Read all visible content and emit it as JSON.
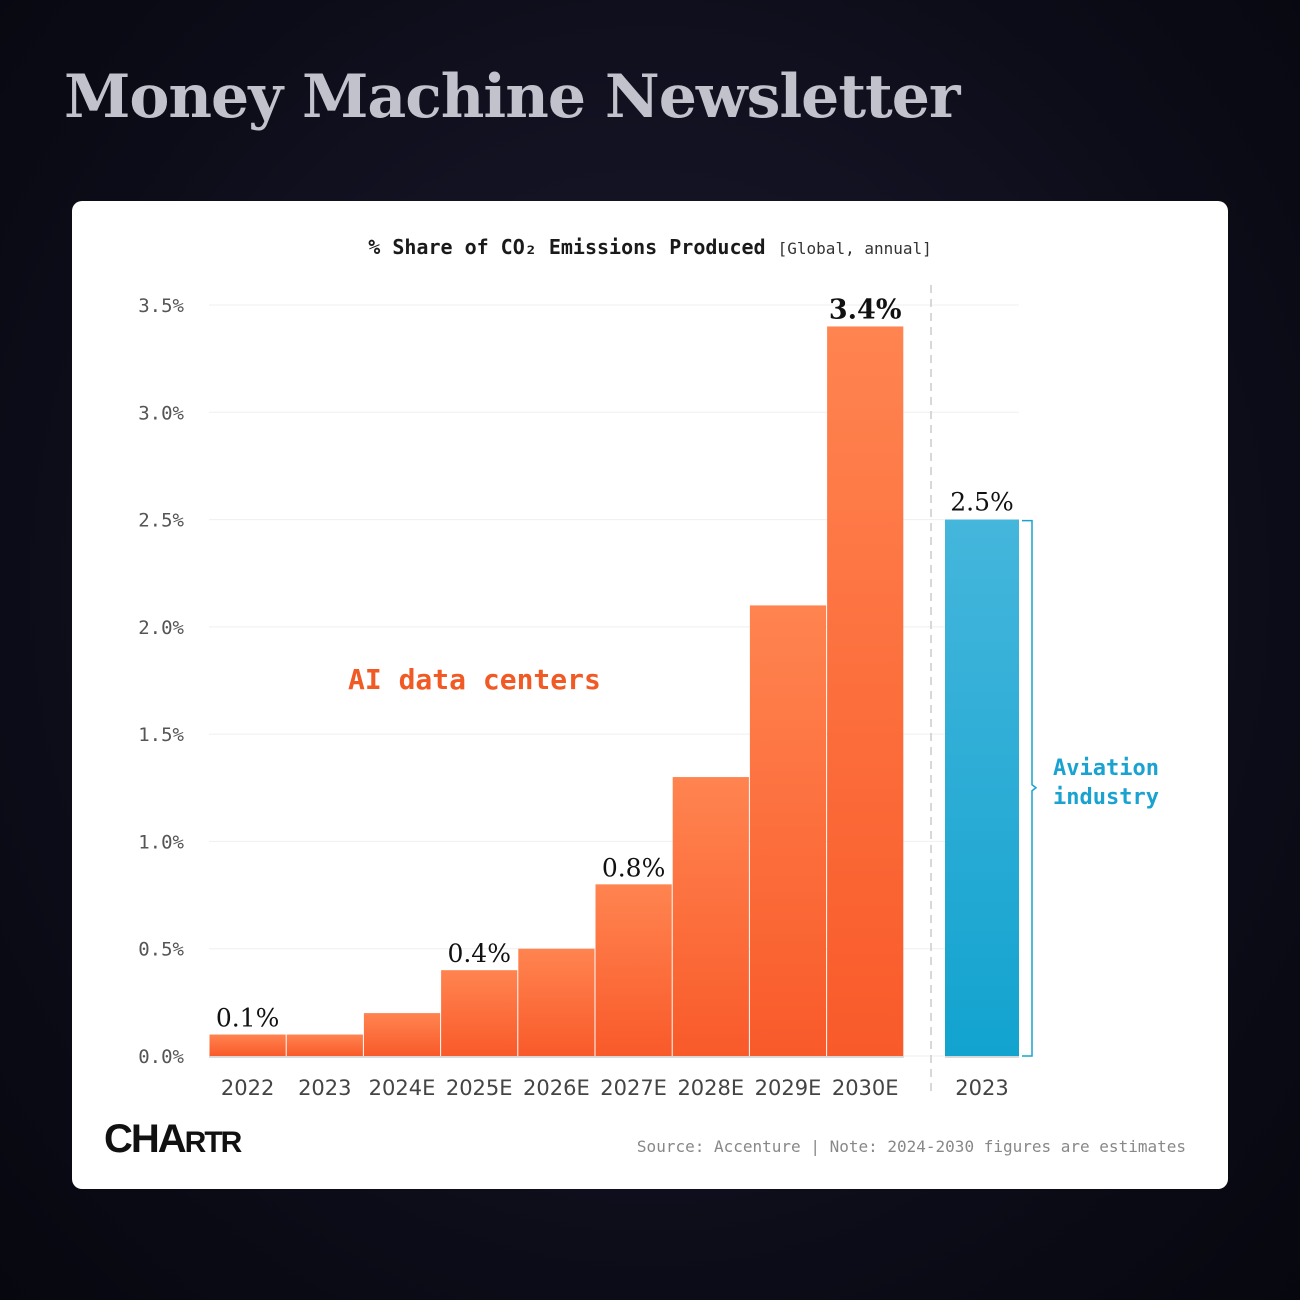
{
  "header": {
    "title": "Money Machine Newsletter"
  },
  "chart_data": {
    "type": "bar",
    "title": "% Share of CO₂ Emissions Produced",
    "subtitle": "[Global, annual]",
    "ylim": [
      0,
      3.5
    ],
    "yticks": [
      "0.0%",
      "0.5%",
      "1.0%",
      "1.5%",
      "2.0%",
      "2.5%",
      "3.0%",
      "3.5%"
    ],
    "grid": true,
    "series": [
      {
        "name": "AI data centers",
        "color": "#f15a24",
        "categories": [
          "2022",
          "2023",
          "2024E",
          "2025E",
          "2026E",
          "2027E",
          "2028E",
          "2029E",
          "2030E"
        ],
        "values": [
          0.1,
          0.1,
          0.2,
          0.4,
          0.5,
          0.8,
          1.3,
          2.1,
          3.4
        ],
        "labels": [
          "0.1%",
          "",
          "",
          "0.4%",
          "",
          "0.8%",
          "",
          "",
          "3.4%"
        ]
      },
      {
        "name": "Aviation industry",
        "color": "#1aa3d1",
        "categories": [
          "2023"
        ],
        "values": [
          2.5
        ],
        "labels": [
          "2.5%"
        ]
      }
    ],
    "series_label_ai": "AI data centers",
    "series_label_av_line1": "Aviation",
    "series_label_av_line2": "industry"
  },
  "footer": {
    "logo_big": "CHA",
    "logo_small": "RTR",
    "source": "Source: Accenture | Note: 2024-2030 figures are estimates"
  }
}
